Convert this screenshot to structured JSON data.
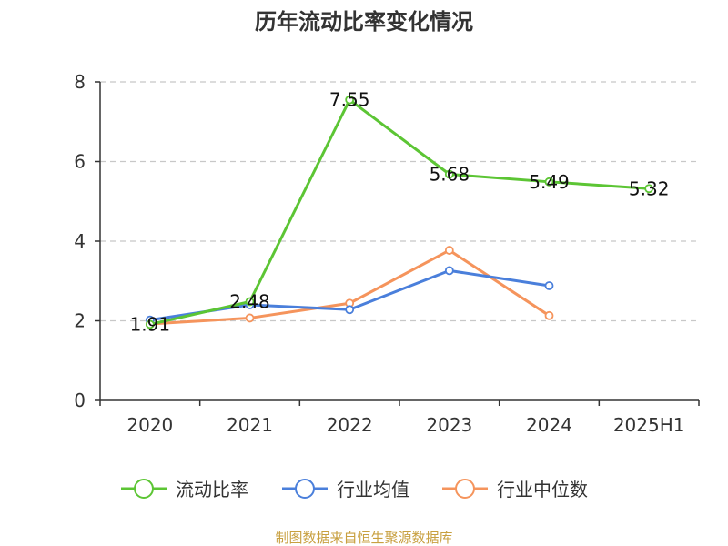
{
  "chart_data": {
    "type": "line",
    "title": "历年流动比率变化情况",
    "categories": [
      "2020",
      "2021",
      "2022",
      "2023",
      "2024",
      "2025H1"
    ],
    "ylim": [
      0,
      8
    ],
    "yticks": [
      0,
      2,
      4,
      6,
      8
    ],
    "grid": "horizontal-dashed",
    "legend_position": "bottom",
    "series": [
      {
        "name": "流动比率",
        "color": "#5cc534",
        "values": [
          1.91,
          2.48,
          7.55,
          5.68,
          5.49,
          5.32
        ],
        "labels": [
          "1.91",
          "2.48",
          "7.55",
          "5.68",
          "5.49",
          "5.32"
        ],
        "show_labels": true
      },
      {
        "name": "行业均值",
        "color": "#4a7fdb",
        "values": [
          2.02,
          2.4,
          2.28,
          3.26,
          2.88,
          null
        ],
        "show_labels": false
      },
      {
        "name": "行业中位数",
        "color": "#f5945c",
        "values": [
          1.92,
          2.07,
          2.44,
          3.77,
          2.13,
          null
        ],
        "show_labels": false
      }
    ]
  },
  "footer": {
    "source": "制图数据来自恒生聚源数据库",
    "source_color": "#c8a040"
  }
}
